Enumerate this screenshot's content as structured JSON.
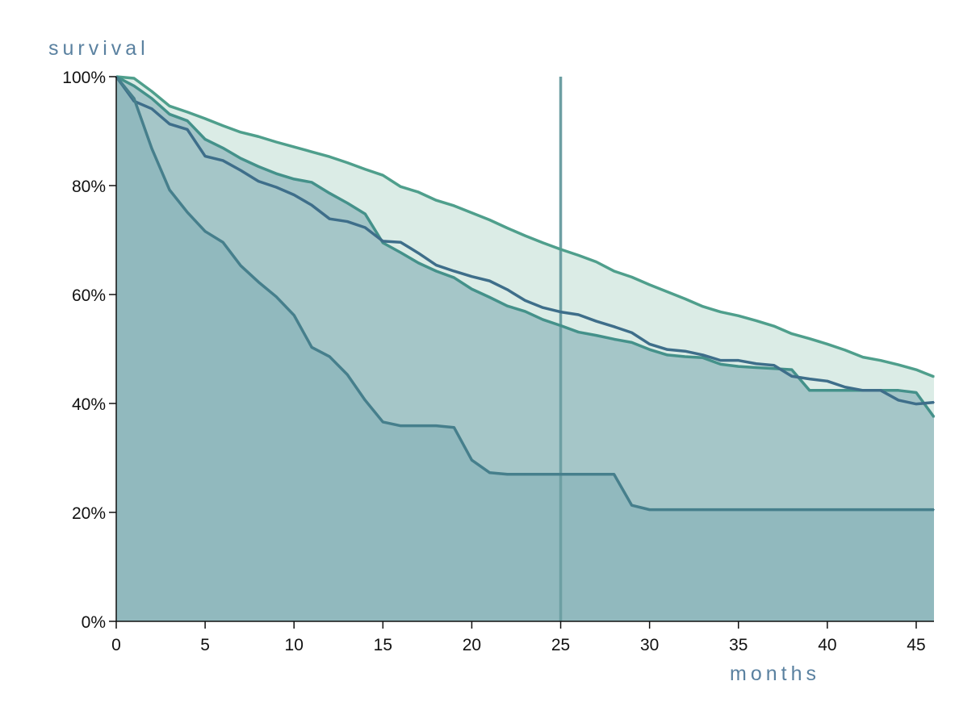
{
  "chart_data": {
    "type": "area",
    "title": "",
    "xlabel": "months",
    "ylabel": "survival",
    "xlim": [
      0,
      46
    ],
    "ylim": [
      0,
      100
    ],
    "x_ticks": [
      0,
      5,
      10,
      15,
      20,
      25,
      30,
      35,
      40,
      45
    ],
    "y_ticks": [
      0,
      20,
      40,
      60,
      80,
      100
    ],
    "y_tick_labels": [
      "0%",
      "20%",
      "40%",
      "60%",
      "80%",
      "100%"
    ],
    "grid": false,
    "legend": "none",
    "reference_line": {
      "x": 25,
      "y_from": 0,
      "y_to": 100
    },
    "x": [
      0,
      1,
      2,
      3,
      4,
      5,
      6,
      7,
      8,
      9,
      10,
      11,
      12,
      13,
      14,
      15,
      16,
      17,
      18,
      19,
      20,
      21,
      22,
      23,
      24,
      25,
      26,
      27,
      28,
      29,
      30,
      31,
      32,
      33,
      34,
      35,
      36,
      37,
      38,
      39,
      40,
      41,
      42,
      43,
      44,
      45,
      46
    ],
    "series": [
      {
        "values": [
          100,
          99.7,
          97.3,
          94.6,
          93.5,
          92.3,
          91.0,
          89.8,
          89.0,
          88.0,
          87.1,
          86.2,
          85.3,
          84.2,
          83.0,
          81.9,
          79.8,
          78.8,
          77.3,
          76.3,
          75.0,
          73.7,
          72.2,
          70.8,
          69.5,
          68.3,
          67.2,
          66.0,
          64.3,
          63.2,
          61.8,
          60.5,
          59.2,
          57.8,
          56.8,
          56.1,
          55.2,
          54.2,
          52.8,
          51.9,
          50.9,
          49.8,
          48.5,
          47.9,
          47.1,
          46.2,
          44.9
        ],
        "color": "#4f9f8c",
        "fill": "#dbece6"
      },
      {
        "values": [
          100,
          98.3,
          96.0,
          93.1,
          91.9,
          88.5,
          86.9,
          85.0,
          83.5,
          82.2,
          81.2,
          80.6,
          78.6,
          76.8,
          74.8,
          69.5,
          67.7,
          65.8,
          64.3,
          63.1,
          61.0,
          59.5,
          57.9,
          56.9,
          55.4,
          54.3,
          53.1,
          52.5,
          51.8,
          51.2,
          49.9,
          48.9,
          48.6,
          48.4,
          47.2,
          46.8,
          46.6,
          46.4,
          46.2,
          42.4,
          42.4,
          42.4,
          42.4,
          42.4,
          42.4,
          42.0,
          37.5
        ],
        "color": "#44918a",
        "fill": "#a5c6c8"
      },
      {
        "values": [
          100,
          95.5,
          94.1,
          91.3,
          90.3,
          85.4,
          84.6,
          82.8,
          80.8,
          79.7,
          78.3,
          76.4,
          73.9,
          73.4,
          72.3,
          69.8,
          69.6,
          67.6,
          65.4,
          64.3,
          63.3,
          62.5,
          60.9,
          58.9,
          57.6,
          56.8,
          56.3,
          55.1,
          54.1,
          53.0,
          50.9,
          49.9,
          49.6,
          48.9,
          47.9,
          47.9,
          47.3,
          47.0,
          45.0,
          44.5,
          44.1,
          43.0,
          42.4,
          42.4,
          40.6,
          39.9,
          40.2
        ],
        "color": "#3e6e8a",
        "fill": "none"
      },
      {
        "values": [
          100,
          96.0,
          86.8,
          79.2,
          75.1,
          71.6,
          69.6,
          65.3,
          62.3,
          59.6,
          56.2,
          50.3,
          48.6,
          45.3,
          40.6,
          36.6,
          35.9,
          35.9,
          35.9,
          35.6,
          29.6,
          27.3,
          27.0,
          27.0,
          27.0,
          27.0,
          27.0,
          27.0,
          27.0,
          21.3,
          20.5,
          20.5,
          20.5,
          20.5,
          20.5,
          20.5,
          20.5,
          20.5,
          20.5,
          20.5,
          20.5,
          20.5,
          20.5,
          20.5,
          20.5,
          20.5,
          20.5
        ],
        "color": "#467f8c",
        "fill": "#91b9be"
      }
    ]
  },
  "colors": {
    "axis": "#111111",
    "axis_title": "#5a81a0",
    "reference_line": "#6d9fa3"
  }
}
